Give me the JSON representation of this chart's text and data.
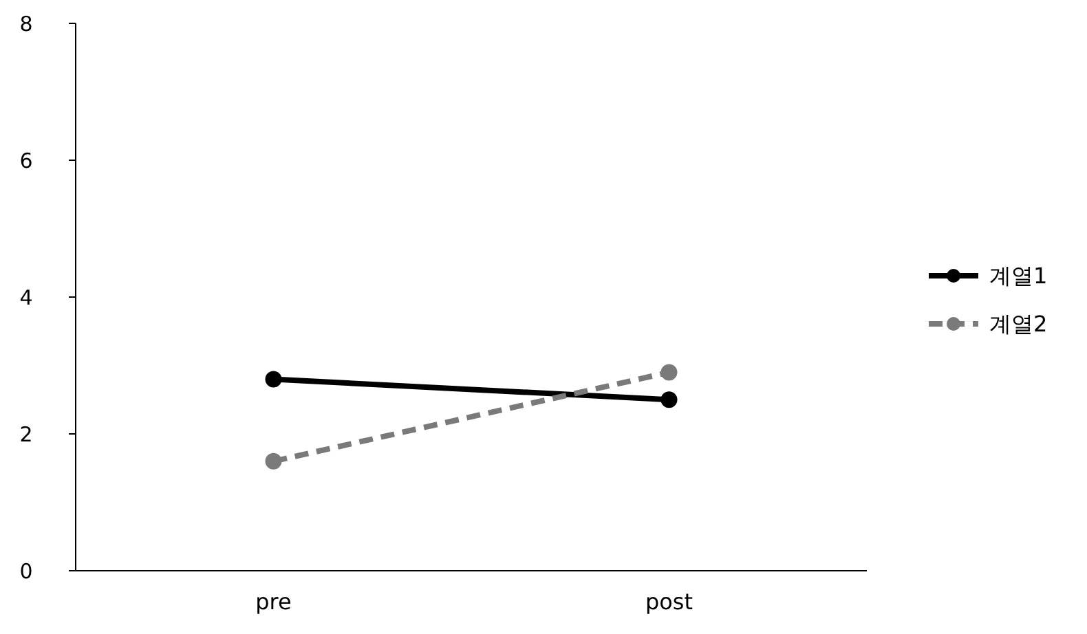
{
  "chart_data": {
    "type": "line",
    "categories": [
      "pre",
      "post"
    ],
    "ylim": [
      0,
      8
    ],
    "yticks": [
      0,
      2,
      4,
      6,
      8
    ],
    "grid": false,
    "legend": "right",
    "marker": "circle",
    "series": [
      {
        "name": "계열1",
        "color": "#000000",
        "line_style": "solid",
        "values": [
          2.8,
          2.5
        ]
      },
      {
        "name": "계열2",
        "color": "#7a7a7a",
        "line_style": "dashed",
        "values": [
          1.6,
          2.9
        ]
      }
    ]
  }
}
